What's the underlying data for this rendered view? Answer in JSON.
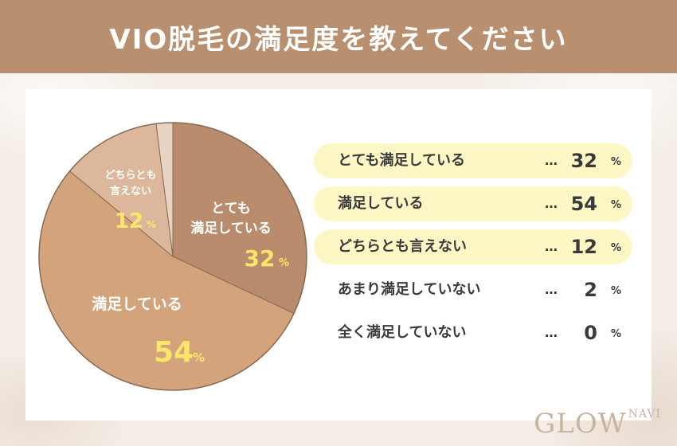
{
  "header": {
    "title": "VIO脱毛の満足度を教えてください"
  },
  "chart_data": {
    "type": "pie",
    "title": "VIO脱毛の満足度を教えてください",
    "unit": "%",
    "slices": [
      {
        "label": "とても満足している",
        "value": 32,
        "color": "#b88c6c"
      },
      {
        "label": "満足している",
        "value": 54,
        "color": "#d3a47c"
      },
      {
        "label": "どちらとも言えない",
        "value": 12,
        "color": "#dcb79c"
      },
      {
        "label": "あまり満足していない",
        "value": 2,
        "color": "#e8d4c2"
      },
      {
        "label": "全く満足していない",
        "value": 0,
        "color": "#eee2d6"
      }
    ]
  },
  "pie_labels": {
    "very_satisfied": {
      "line1": "とても",
      "line2": "満足している",
      "value": "32",
      "unit": "%"
    },
    "satisfied": {
      "line1": "満足している",
      "value": "54",
      "unit": "%"
    },
    "neutral": {
      "line1": "どちらとも",
      "line2": "言えない",
      "value": "12",
      "unit": "%"
    }
  },
  "legend": [
    {
      "label": "とても満足している",
      "dots": "…",
      "value": "32",
      "unit": "%",
      "highlight": true
    },
    {
      "label": "満足している",
      "dots": "…",
      "value": "54",
      "unit": "%",
      "highlight": true
    },
    {
      "label": "どちらとも言えない",
      "dots": "…",
      "value": "12",
      "unit": "%",
      "highlight": true
    },
    {
      "label": "あまり満足していない",
      "dots": "…",
      "value": "2",
      "unit": "%",
      "highlight": false
    },
    {
      "label": "全く満足していない",
      "dots": "…",
      "value": "0",
      "unit": "%",
      "highlight": false
    }
  ],
  "logo": {
    "main": "GLOW",
    "suffix": "NAVI"
  },
  "colors": {
    "header": "#b89070",
    "label_value": "#f9e66a",
    "highlight": "#fdf7c6"
  }
}
